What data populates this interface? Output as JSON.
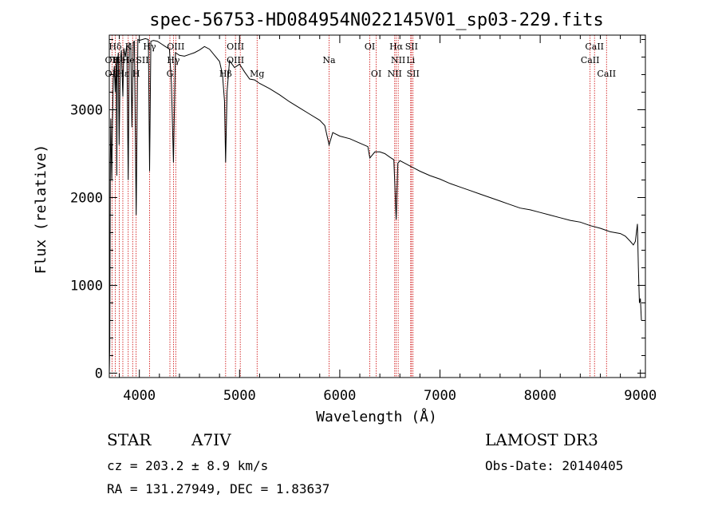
{
  "chart_data": {
    "type": "line",
    "title": "spec-56753-HD084954N022145V01_sp03-229.fits",
    "xlabel": "Wavelength (Å)",
    "ylabel": "Flux (relative)",
    "xlim": [
      3700,
      9050
    ],
    "ylim": [
      -50,
      3850
    ],
    "xticks": [
      4000,
      5000,
      6000,
      7000,
      8000,
      9000
    ],
    "yticks": [
      0,
      1000,
      2000,
      3000
    ],
    "grid": false,
    "series": [
      {
        "x": [
          3700,
          3705,
          3710,
          3715,
          3720,
          3725,
          3730,
          3740,
          3750,
          3760,
          3770,
          3775,
          3780,
          3790,
          3798,
          3810,
          3820,
          3835,
          3845,
          3860,
          3875,
          3889,
          3900,
          3915,
          3925,
          3940,
          3950,
          3968,
          3985,
          4000,
          4030,
          4060,
          4090,
          4102,
          4115,
          4140,
          4180,
          4220,
          4260,
          4300,
          4320,
          4340,
          4360,
          4400,
          4450,
          4500,
          4550,
          4600,
          4650,
          4700,
          4750,
          4800,
          4830,
          4850,
          4861,
          4875,
          4900,
          4950,
          5000,
          5050,
          5100,
          5150,
          5200,
          5300,
          5400,
          5500,
          5600,
          5700,
          5800,
          5850,
          5893,
          5930,
          6000,
          6100,
          6200,
          6280,
          6300,
          6350,
          6400,
          6450,
          6500,
          6540,
          6563,
          6580,
          6600,
          6650,
          6700,
          6750,
          6800,
          6900,
          7000,
          7100,
          7200,
          7300,
          7400,
          7500,
          7600,
          7700,
          7800,
          7900,
          8000,
          8100,
          8200,
          8300,
          8400,
          8500,
          8600,
          8700,
          8800,
          8850,
          8900,
          8930,
          8950,
          8960,
          8970,
          8980,
          8990,
          9000,
          9010
        ],
        "y": [
          0,
          300,
          2400,
          2900,
          2500,
          2200,
          2750,
          3350,
          3500,
          3200,
          3600,
          2250,
          3500,
          3650,
          2600,
          3550,
          3680,
          3150,
          3700,
          3600,
          3750,
          2200,
          3760,
          3740,
          2800,
          3770,
          3780,
          1800,
          3800,
          3790,
          3800,
          3810,
          3800,
          2300,
          3780,
          3790,
          3780,
          3750,
          3720,
          3690,
          3300,
          2400,
          3650,
          3620,
          3610,
          3630,
          3650,
          3680,
          3720,
          3690,
          3620,
          3550,
          3400,
          3100,
          2400,
          3200,
          3560,
          3480,
          3520,
          3430,
          3350,
          3340,
          3300,
          3240,
          3170,
          3090,
          3020,
          2950,
          2880,
          2820,
          2600,
          2740,
          2700,
          2670,
          2620,
          2580,
          2450,
          2520,
          2520,
          2500,
          2460,
          2430,
          1750,
          2390,
          2420,
          2390,
          2360,
          2330,
          2300,
          2250,
          2210,
          2160,
          2120,
          2080,
          2040,
          2000,
          1960,
          1920,
          1880,
          1860,
          1830,
          1800,
          1770,
          1740,
          1720,
          1680,
          1650,
          1610,
          1590,
          1560,
          1500,
          1460,
          1500,
          1600,
          1700,
          1200,
          800,
          850,
          600
        ]
      }
    ],
    "line_markers": [
      {
        "label": "OII",
        "wavelength": 3727,
        "row": 2
      },
      {
        "label": "OII",
        "wavelength": 3727,
        "row": 3
      },
      {
        "label": "Hδ",
        "wavelength": 3760,
        "row": 1
      },
      {
        "label": "He",
        "wavelength": 3799,
        "row": 2
      },
      {
        "label": "Hε",
        "wavelength": 3835,
        "row": 3
      },
      {
        "label": "K",
        "wavelength": 3890,
        "row": 1
      },
      {
        "label": "He",
        "wavelength": 3889,
        "row": 2
      },
      {
        "label": "H",
        "wavelength": 3968,
        "row": 3
      },
      {
        "label": "SII",
        "wavelength": 4030,
        "row": 2
      },
      {
        "label": "Hγ",
        "wavelength": 4102,
        "row": 1
      },
      {
        "label": "OIII",
        "wavelength": 4363,
        "row": 1
      },
      {
        "label": "Hγ",
        "wavelength": 4340,
        "row": 2
      },
      {
        "label": "G",
        "wavelength": 4305,
        "row": 3
      },
      {
        "label": "OIII",
        "wavelength": 4959,
        "row": 1
      },
      {
        "label": "OIII",
        "wavelength": 4959,
        "row": 2
      },
      {
        "label": "Hβ",
        "wavelength": 4861,
        "row": 3
      },
      {
        "label": "Mg",
        "wavelength": 5175,
        "row": 3
      },
      {
        "label": "Na",
        "wavelength": 5893,
        "row": 2
      },
      {
        "label": "OI",
        "wavelength": 6300,
        "row": 1
      },
      {
        "label": "OI",
        "wavelength": 6364,
        "row": 3
      },
      {
        "label": "Hα",
        "wavelength": 6563,
        "row": 1
      },
      {
        "label": "SII",
        "wavelength": 6716,
        "row": 1
      },
      {
        "label": "NII",
        "wavelength": 6583,
        "row": 2
      },
      {
        "label": "Li",
        "wavelength": 6708,
        "row": 2
      },
      {
        "label": "NII",
        "wavelength": 6548,
        "row": 3
      },
      {
        "label": "SII",
        "wavelength": 6731,
        "row": 3
      },
      {
        "label": "CaII",
        "wavelength": 8542,
        "row": 1
      },
      {
        "label": "CaII",
        "wavelength": 8498,
        "row": 2
      },
      {
        "label": "CaII",
        "wavelength": 8662,
        "row": 3
      }
    ],
    "marker_lines": [
      3727,
      3760,
      3799,
      3835,
      3889,
      3933,
      3968,
      4102,
      4305,
      4340,
      4363,
      4861,
      4959,
      5007,
      5175,
      5893,
      6300,
      6364,
      6548,
      6563,
      6583,
      6708,
      6716,
      6731,
      8498,
      8542,
      8662
    ],
    "colors": {
      "spectrum": "#000000",
      "markers": "#cc0000",
      "axes": "#000000"
    }
  },
  "info": {
    "class": "STAR",
    "subclass": "A7IV",
    "survey": "LAMOST DR3",
    "cz": "cz = 203.2 ± 8.9 km/s",
    "obs_date": "Obs-Date: 20140405",
    "radec": "RA = 131.27949, DEC =    1.83637"
  }
}
